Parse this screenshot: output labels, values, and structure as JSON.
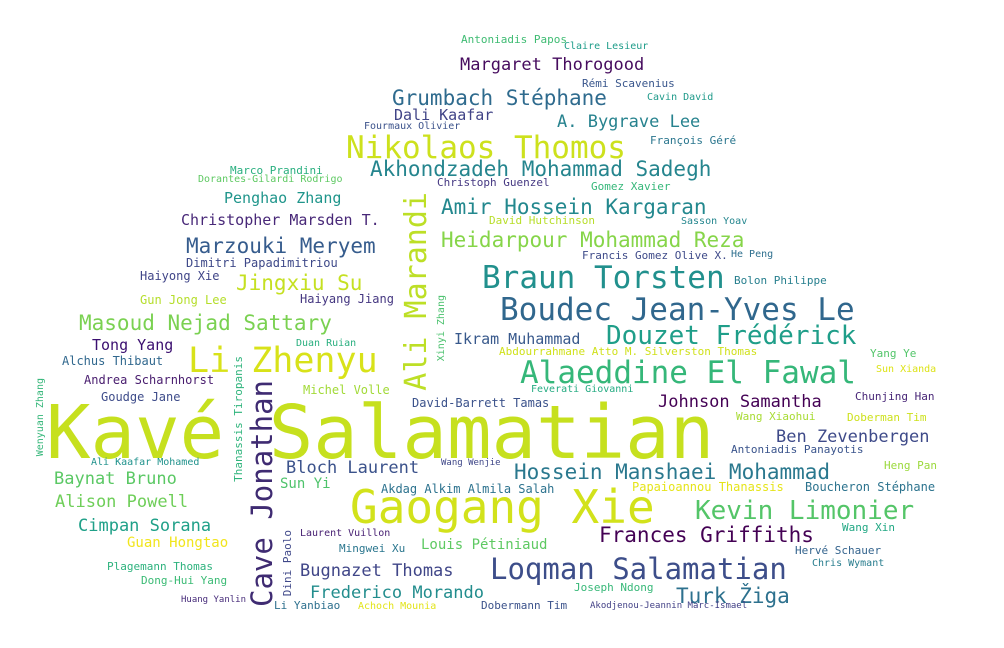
{
  "words": [
    {
      "text": "Kavé Salamatian",
      "color": "#c6e01e"
    },
    {
      "text": "Gaogang Xie",
      "color": "#d2e21b"
    },
    {
      "text": "Loqman Salamatian",
      "color": "#3d4e8a"
    },
    {
      "text": "Li Zhenyu",
      "color": "#d8e219"
    },
    {
      "text": "Cave Jonathan",
      "color": "#3f2b72"
    },
    {
      "text": "Ali Marandi",
      "color": "#bddf26"
    },
    {
      "text": "Braun Torsten",
      "color": "#21908d"
    },
    {
      "text": "Boudec Jean-Yves Le",
      "color": "#30678d"
    },
    {
      "text": "Alaeddine El Fawal",
      "color": "#35b779"
    },
    {
      "text": "Nikolaos Thomos",
      "color": "#cde11d"
    },
    {
      "text": "Kevin Limonier",
      "color": "#54c568"
    },
    {
      "text": "Douzet Frédérick",
      "color": "#1f9e89"
    },
    {
      "text": "Hossein Manshaei Mohammad",
      "color": "#2a788e"
    },
    {
      "text": "Akhondzadeh Mohammad Sadegh",
      "color": "#25858e"
    },
    {
      "text": "Amir Hossein Kargaran",
      "color": "#23888e"
    },
    {
      "text": "Heidarpour Mohammad Reza",
      "color": "#86d549"
    },
    {
      "text": "Grumbach Stéphane",
      "color": "#2f6b8e"
    },
    {
      "text": "Marzouki Meryem",
      "color": "#365c8d"
    },
    {
      "text": "Jingxiu Su",
      "color": "#c5e021"
    },
    {
      "text": "Masoud Nejad Sattary",
      "color": "#7ad151"
    },
    {
      "text": "Frances Griffiths",
      "color": "#440154"
    },
    {
      "text": "Turk Žiga",
      "color": "#2d718e"
    },
    {
      "text": "Margaret Thorogood",
      "color": "#460b5e"
    },
    {
      "text": "Johnson Samantha",
      "color": "#440154"
    },
    {
      "text": "Ben Zevenbergen",
      "color": "#3e4a89"
    },
    {
      "text": "Bloch Laurent",
      "color": "#3b528b"
    },
    {
      "text": "Baynat Bruno",
      "color": "#5ac864"
    },
    {
      "text": "Alison Powell",
      "color": "#6ece58"
    },
    {
      "text": "Cimpan Sorana",
      "color": "#1fa088"
    },
    {
      "text": "Bugnazet Thomas",
      "color": "#404688"
    },
    {
      "text": "Frederico Morando",
      "color": "#228d8d"
    },
    {
      "text": "A. Bygrave Lee",
      "color": "#26828e"
    },
    {
      "text": "Tong Yang",
      "color": "#3b0f70"
    },
    {
      "text": "Christopher Marsden T.",
      "color": "#482878"
    },
    {
      "text": "Penghao Zhang",
      "color": "#1f958b"
    },
    {
      "text": "Dali Kaafar",
      "color": "#414487"
    },
    {
      "text": "Ikram Muhammad",
      "color": "#38598c"
    },
    {
      "text": "Andrea Scharnhorst",
      "color": "#481c6e"
    },
    {
      "text": "Louis Pétiniaud",
      "color": "#5ec962"
    },
    {
      "text": "Guan Hongtao",
      "color": "#f1e51d"
    },
    {
      "text": "Sun Yi",
      "color": "#4ec36b"
    },
    {
      "text": "Goudge Jane",
      "color": "#3e4c8a"
    },
    {
      "text": "Alchus Thibaut",
      "color": "#31688e"
    },
    {
      "text": "Gun Jong Lee",
      "color": "#b5de2b"
    },
    {
      "text": "Haiyong Xie",
      "color": "#404588"
    },
    {
      "text": "Haiyang Jiang",
      "color": "#453781"
    },
    {
      "text": "Dimitri Papadimitriou",
      "color": "#3e4989"
    },
    {
      "text": "Michel Volle",
      "color": "#a2da37"
    },
    {
      "text": "David-Barrett Tamas",
      "color": "#3b528b"
    },
    {
      "text": "Duan Ruian",
      "color": "#29af7f"
    },
    {
      "text": "Abdourrahmane Atto M. Silverston Thomas",
      "color": "#d0e11c"
    },
    {
      "text": "Feverati Giovanni",
      "color": "#25ab82"
    },
    {
      "text": "Akdag Alkim Almila Salah",
      "color": "#2c728e"
    },
    {
      "text": "Papaioannou Thanassis",
      "color": "#e5e419"
    },
    {
      "text": "Boucheron Stéphane",
      "color": "#2c738e"
    },
    {
      "text": "Wang Wenjie",
      "color": "#3f4788"
    },
    {
      "text": "Ali Kaafar Mohamed",
      "color": "#20928c"
    },
    {
      "text": "Laurent Vuillon",
      "color": "#482173"
    },
    {
      "text": "Mingwei Xu",
      "color": "#2a768e"
    },
    {
      "text": "Joseph Ndong",
      "color": "#37b878"
    },
    {
      "text": "Dobermann Tim",
      "color": "#3b528b"
    },
    {
      "text": "Akodjenou-Jeannin Marc-Ismael",
      "color": "#424086"
    },
    {
      "text": "Li Yanbiao",
      "color": "#2d708e"
    },
    {
      "text": "Achoch Mounia",
      "color": "#e2e418"
    },
    {
      "text": "Huang Yanlin",
      "color": "#472c7a"
    },
    {
      "text": "Dong-Hui Yang",
      "color": "#3bbb75"
    },
    {
      "text": "Plagemann Thomas",
      "color": "#2db27d"
    },
    {
      "text": "Hervé Schauer",
      "color": "#33638d"
    },
    {
      "text": "Chris Wymant",
      "color": "#287d8e"
    },
    {
      "text": "Wang Xin",
      "color": "#22a884"
    },
    {
      "text": "Heng Pan",
      "color": "#9bd93c"
    },
    {
      "text": "Antoniadis Panayotis",
      "color": "#3a548c"
    },
    {
      "text": "Doberman Tim",
      "color": "#cde11d"
    },
    {
      "text": "Wang Xiaohui",
      "color": "#a8db34"
    },
    {
      "text": "Chunjing Han",
      "color": "#482677"
    },
    {
      "text": "Sun Xianda",
      "color": "#dde318"
    },
    {
      "text": "Yang Ye",
      "color": "#52c569"
    },
    {
      "text": "Bolon Philippe",
      "color": "#277f8e"
    },
    {
      "text": "Francis Gomez Olive X.",
      "color": "#3e4a89"
    },
    {
      "text": "He Peng",
      "color": "#2e6f8e"
    },
    {
      "text": "Sasson Yoav",
      "color": "#24868e"
    },
    {
      "text": "David Hutchinson",
      "color": "#b8de29"
    },
    {
      "text": "Gomez Xavier",
      "color": "#35b779"
    },
    {
      "text": "Christoph Guenzel",
      "color": "#453882"
    },
    {
      "text": "François Géré",
      "color": "#2a768e"
    },
    {
      "text": "Fourmaux Olivier",
      "color": "#3b528b"
    },
    {
      "text": "Cavin David",
      "color": "#1f9a8a"
    },
    {
      "text": "Rémi Scavenius",
      "color": "#39568c"
    },
    {
      "text": "Claire Lesieur",
      "color": "#1e9c89"
    },
    {
      "text": "Antoniadis Papos",
      "color": "#3fbc73"
    },
    {
      "text": "Marco Prandini",
      "color": "#29af7f"
    },
    {
      "text": "Dorantes-Gilardi Rodrigo",
      "color": "#5ec962"
    },
    {
      "text": "Xinyi Zhang",
      "color": "#4ac16d"
    },
    {
      "text": "Thanassis Tiropanis",
      "color": "#2fb47c"
    },
    {
      "text": "Wenyuan Zhang",
      "color": "#34b679"
    },
    {
      "text": "Dini Paolo",
      "color": "#3f4889"
    }
  ]
}
